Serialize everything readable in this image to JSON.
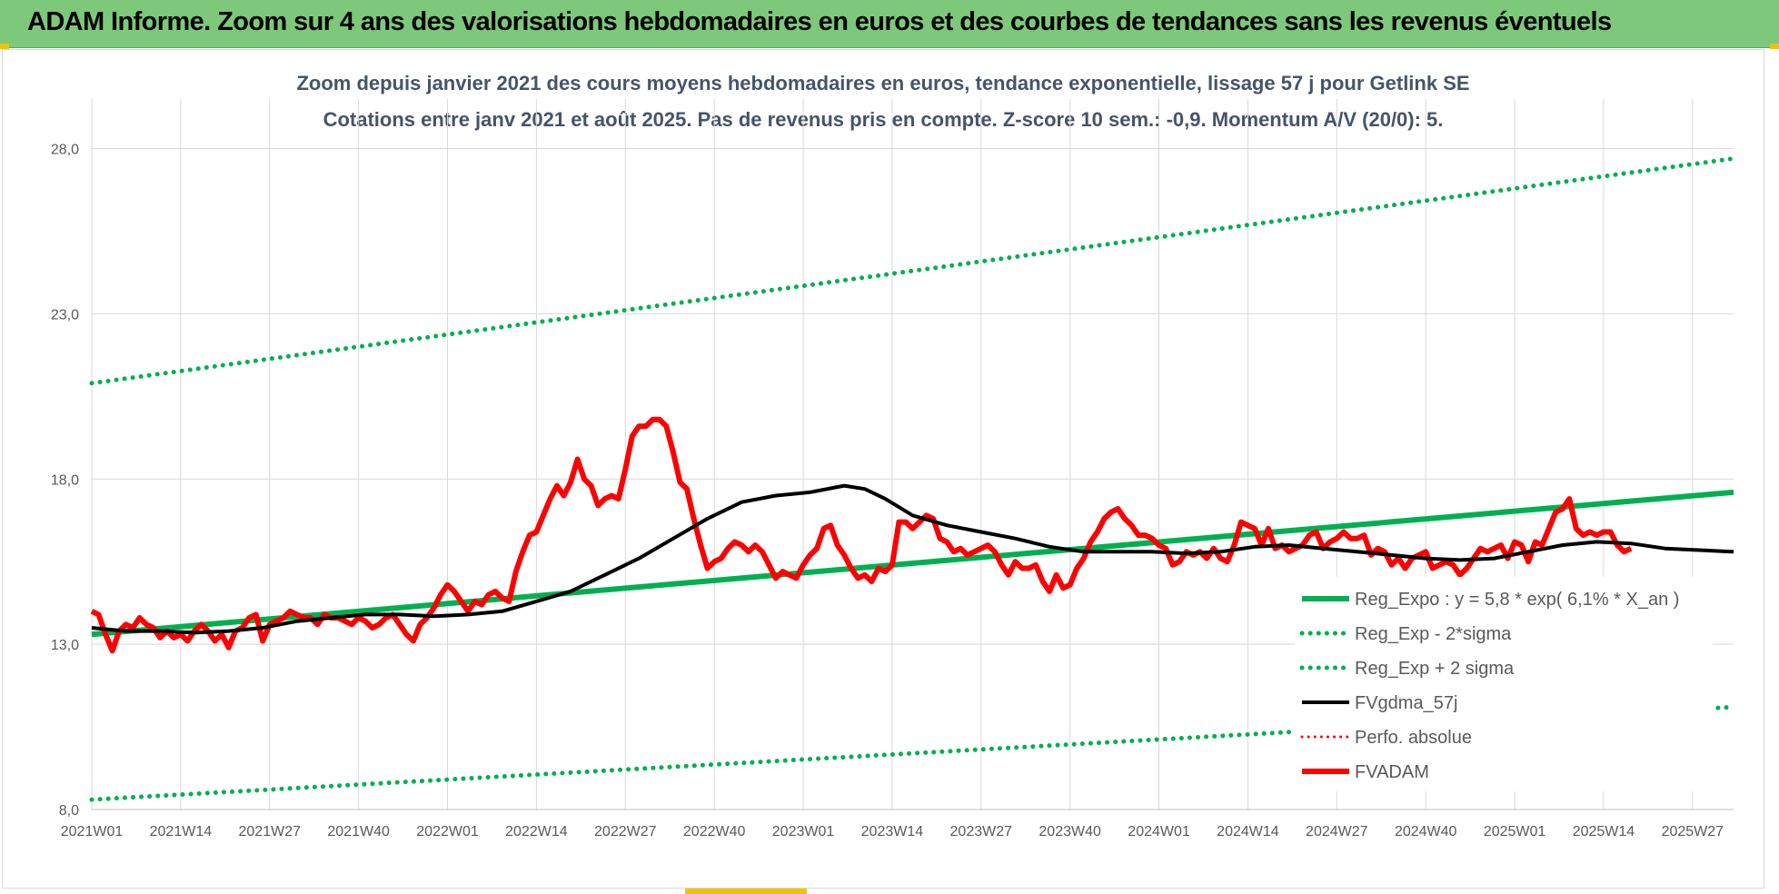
{
  "banner": {
    "title": "ADAM Informe. Zoom sur 4 ans des valorisations hebdomadaires en euros et des courbes de tendances sans les revenus éventuels"
  },
  "colors": {
    "banner_bg": "#7dc87a",
    "reg_expo": "#00b050",
    "band": "#00b050",
    "fvgdma": "#000000",
    "perf_absolue": "#ff0000",
    "fvadam": "#ff0000"
  },
  "chart_data": {
    "type": "line",
    "title": "Zoom depuis janvier 2021 des cours moyens hebdomadaires en euros, tendance exponentielle, lissage 57 j pour Getlink SE",
    "subtitle": "Cotations entre janv 2021 et août 2025.  Pas de revenus pris en compte. Z-score 10 sem.: -0,9. Momentum A/V (20/0): 5.",
    "xlabel": "",
    "ylabel": "",
    "ylim": [
      8.0,
      29.5
    ],
    "y_ticks": [
      "8,0",
      "13,0",
      "18,0",
      "23,0",
      "28,0"
    ],
    "x_ticks": [
      "2021W01",
      "2021W14",
      "2021W27",
      "2021W40",
      "2022W01",
      "2022W14",
      "2022W27",
      "2022W40",
      "2023W01",
      "2023W14",
      "2023W27",
      "2023W40",
      "2024W01",
      "2024W14",
      "2024W27",
      "2024W40",
      "2025W01",
      "2025W14",
      "2025W27"
    ],
    "x_week_range": [
      0,
      240
    ],
    "grid": "vertical and horizontal",
    "legend_position": "right",
    "series": [
      {
        "name": "Reg_Expo : y = 5,8 * exp( 6,1% *  X_an )",
        "style": "solid-thick",
        "points": [
          [
            0,
            13.3
          ],
          [
            240,
            17.6
          ]
        ]
      },
      {
        "name": "Reg_Exp - 2*sigma",
        "style": "dotted",
        "points": [
          [
            0,
            8.3
          ],
          [
            240,
            11.1
          ]
        ]
      },
      {
        "name": "Reg_Exp + 2 sigma",
        "style": "dotted",
        "points": [
          [
            0,
            20.9
          ],
          [
            240,
            27.7
          ]
        ]
      },
      {
        "name": "FVgdma_57j",
        "style": "solid",
        "points": [
          [
            0,
            13.5
          ],
          [
            5,
            13.4
          ],
          [
            10,
            13.4
          ],
          [
            15,
            13.35
          ],
          [
            20,
            13.4
          ],
          [
            25,
            13.5
          ],
          [
            30,
            13.7
          ],
          [
            35,
            13.8
          ],
          [
            40,
            13.9
          ],
          [
            45,
            13.9
          ],
          [
            50,
            13.85
          ],
          [
            55,
            13.9
          ],
          [
            60,
            14.0
          ],
          [
            65,
            14.3
          ],
          [
            70,
            14.6
          ],
          [
            75,
            15.1
          ],
          [
            80,
            15.6
          ],
          [
            85,
            16.2
          ],
          [
            90,
            16.8
          ],
          [
            95,
            17.3
          ],
          [
            100,
            17.5
          ],
          [
            105,
            17.6
          ],
          [
            110,
            17.8
          ],
          [
            113,
            17.7
          ],
          [
            116,
            17.4
          ],
          [
            120,
            16.9
          ],
          [
            125,
            16.6
          ],
          [
            130,
            16.4
          ],
          [
            135,
            16.2
          ],
          [
            140,
            15.95
          ],
          [
            145,
            15.8
          ],
          [
            150,
            15.8
          ],
          [
            155,
            15.8
          ],
          [
            160,
            15.75
          ],
          [
            165,
            15.8
          ],
          [
            170,
            15.95
          ],
          [
            175,
            16.0
          ],
          [
            180,
            15.9
          ],
          [
            185,
            15.8
          ],
          [
            190,
            15.7
          ],
          [
            195,
            15.6
          ],
          [
            200,
            15.55
          ],
          [
            205,
            15.6
          ],
          [
            210,
            15.8
          ],
          [
            215,
            16.0
          ],
          [
            220,
            16.1
          ],
          [
            225,
            16.05
          ],
          [
            230,
            15.9
          ],
          [
            235,
            15.85
          ],
          [
            240,
            15.8
          ]
        ]
      },
      {
        "name": "Perfo. absolue",
        "style": "dotted-thin",
        "points": []
      },
      {
        "name": "FVADAM",
        "style": "solid-thick",
        "points": [
          [
            0,
            14.0
          ],
          [
            1,
            13.9
          ],
          [
            2,
            13.3
          ],
          [
            3,
            12.8
          ],
          [
            4,
            13.4
          ],
          [
            5,
            13.6
          ],
          [
            6,
            13.5
          ],
          [
            7,
            13.8
          ],
          [
            8,
            13.6
          ],
          [
            9,
            13.5
          ],
          [
            10,
            13.2
          ],
          [
            11,
            13.4
          ],
          [
            12,
            13.2
          ],
          [
            13,
            13.3
          ],
          [
            14,
            13.1
          ],
          [
            15,
            13.4
          ],
          [
            16,
            13.6
          ],
          [
            17,
            13.4
          ],
          [
            18,
            13.1
          ],
          [
            19,
            13.3
          ],
          [
            20,
            12.9
          ],
          [
            21,
            13.4
          ],
          [
            22,
            13.5
          ],
          [
            23,
            13.8
          ],
          [
            24,
            13.9
          ],
          [
            25,
            13.1
          ],
          [
            26,
            13.6
          ],
          [
            27,
            13.7
          ],
          [
            28,
            13.8
          ],
          [
            29,
            14.0
          ],
          [
            30,
            13.9
          ],
          [
            31,
            13.8
          ],
          [
            32,
            13.8
          ],
          [
            33,
            13.6
          ],
          [
            34,
            13.9
          ],
          [
            35,
            13.8
          ],
          [
            36,
            13.8
          ],
          [
            37,
            13.7
          ],
          [
            38,
            13.6
          ],
          [
            39,
            13.8
          ],
          [
            40,
            13.7
          ],
          [
            41,
            13.5
          ],
          [
            42,
            13.6
          ],
          [
            43,
            13.8
          ],
          [
            44,
            13.9
          ],
          [
            45,
            13.6
          ],
          [
            46,
            13.3
          ],
          [
            47,
            13.1
          ],
          [
            48,
            13.6
          ],
          [
            49,
            13.8
          ],
          [
            50,
            14.1
          ],
          [
            51,
            14.5
          ],
          [
            52,
            14.8
          ],
          [
            53,
            14.6
          ],
          [
            54,
            14.3
          ],
          [
            55,
            14.0
          ],
          [
            56,
            14.3
          ],
          [
            57,
            14.2
          ],
          [
            58,
            14.5
          ],
          [
            59,
            14.6
          ],
          [
            60,
            14.4
          ],
          [
            61,
            14.3
          ],
          [
            62,
            15.2
          ],
          [
            63,
            15.8
          ],
          [
            64,
            16.3
          ],
          [
            65,
            16.4
          ],
          [
            66,
            16.9
          ],
          [
            67,
            17.4
          ],
          [
            68,
            17.8
          ],
          [
            69,
            17.5
          ],
          [
            70,
            17.9
          ],
          [
            71,
            18.6
          ],
          [
            72,
            18.0
          ],
          [
            73,
            17.8
          ],
          [
            74,
            17.2
          ],
          [
            75,
            17.4
          ],
          [
            76,
            17.5
          ],
          [
            77,
            17.4
          ],
          [
            78,
            18.3
          ],
          [
            79,
            19.3
          ],
          [
            80,
            19.6
          ],
          [
            81,
            19.6
          ],
          [
            82,
            19.8
          ],
          [
            83,
            19.8
          ],
          [
            84,
            19.6
          ],
          [
            85,
            18.8
          ],
          [
            86,
            17.9
          ],
          [
            87,
            17.7
          ],
          [
            88,
            16.8
          ],
          [
            89,
            16.0
          ],
          [
            90,
            15.3
          ],
          [
            91,
            15.5
          ],
          [
            92,
            15.6
          ],
          [
            93,
            15.9
          ],
          [
            94,
            16.1
          ],
          [
            95,
            16.0
          ],
          [
            96,
            15.8
          ],
          [
            97,
            16.0
          ],
          [
            98,
            15.8
          ],
          [
            99,
            15.4
          ],
          [
            100,
            15.0
          ],
          [
            101,
            15.2
          ],
          [
            102,
            15.1
          ],
          [
            103,
            15.0
          ],
          [
            104,
            15.4
          ],
          [
            105,
            15.7
          ],
          [
            106,
            15.9
          ],
          [
            107,
            16.5
          ],
          [
            108,
            16.6
          ],
          [
            109,
            16.0
          ],
          [
            110,
            15.7
          ],
          [
            111,
            15.3
          ],
          [
            112,
            15.0
          ],
          [
            113,
            15.1
          ],
          [
            114,
            14.9
          ],
          [
            115,
            15.3
          ],
          [
            116,
            15.2
          ],
          [
            117,
            15.4
          ],
          [
            118,
            16.7
          ],
          [
            119,
            16.7
          ],
          [
            120,
            16.5
          ],
          [
            121,
            16.7
          ],
          [
            122,
            16.9
          ],
          [
            123,
            16.8
          ],
          [
            124,
            16.2
          ],
          [
            125,
            16.1
          ],
          [
            126,
            15.8
          ],
          [
            127,
            15.9
          ],
          [
            128,
            15.7
          ],
          [
            129,
            15.8
          ],
          [
            130,
            15.9
          ],
          [
            131,
            16.0
          ],
          [
            132,
            15.8
          ],
          [
            133,
            15.4
          ],
          [
            134,
            15.1
          ],
          [
            135,
            15.5
          ],
          [
            136,
            15.3
          ],
          [
            137,
            15.3
          ],
          [
            138,
            15.4
          ],
          [
            139,
            14.9
          ],
          [
            140,
            14.6
          ],
          [
            141,
            15.1
          ],
          [
            142,
            14.7
          ],
          [
            143,
            14.8
          ],
          [
            144,
            15.3
          ],
          [
            145,
            15.6
          ],
          [
            146,
            16.1
          ],
          [
            147,
            16.4
          ],
          [
            148,
            16.8
          ],
          [
            149,
            17.0
          ],
          [
            150,
            17.1
          ],
          [
            151,
            16.8
          ],
          [
            152,
            16.6
          ],
          [
            153,
            16.3
          ],
          [
            154,
            16.3
          ],
          [
            155,
            16.2
          ],
          [
            156,
            16.0
          ],
          [
            157,
            15.9
          ],
          [
            158,
            15.4
          ],
          [
            159,
            15.5
          ],
          [
            160,
            15.8
          ],
          [
            161,
            15.7
          ],
          [
            162,
            15.8
          ],
          [
            163,
            15.6
          ],
          [
            164,
            15.9
          ],
          [
            165,
            15.6
          ],
          [
            166,
            15.5
          ],
          [
            167,
            16.0
          ],
          [
            168,
            16.7
          ],
          [
            169,
            16.6
          ],
          [
            170,
            16.5
          ],
          [
            171,
            16.0
          ],
          [
            172,
            16.5
          ],
          [
            173,
            15.9
          ],
          [
            174,
            16.0
          ],
          [
            175,
            15.8
          ],
          [
            176,
            15.9
          ],
          [
            177,
            16.0
          ],
          [
            178,
            16.3
          ],
          [
            179,
            16.4
          ],
          [
            180,
            15.9
          ],
          [
            181,
            16.1
          ],
          [
            182,
            16.2
          ],
          [
            183,
            16.4
          ],
          [
            184,
            16.2
          ],
          [
            185,
            16.2
          ],
          [
            186,
            16.3
          ],
          [
            187,
            15.7
          ],
          [
            188,
            15.9
          ],
          [
            189,
            15.8
          ],
          [
            190,
            15.4
          ],
          [
            191,
            15.6
          ],
          [
            192,
            15.3
          ],
          [
            193,
            15.6
          ],
          [
            194,
            15.7
          ],
          [
            195,
            15.8
          ],
          [
            196,
            15.3
          ],
          [
            197,
            15.4
          ],
          [
            198,
            15.5
          ],
          [
            199,
            15.4
          ],
          [
            200,
            15.1
          ],
          [
            201,
            15.3
          ],
          [
            202,
            15.6
          ],
          [
            203,
            15.9
          ],
          [
            204,
            15.8
          ],
          [
            205,
            15.9
          ],
          [
            206,
            16.0
          ],
          [
            207,
            15.6
          ],
          [
            208,
            16.1
          ],
          [
            209,
            16.0
          ],
          [
            210,
            15.5
          ],
          [
            211,
            16.1
          ],
          [
            212,
            16.0
          ],
          [
            213,
            16.5
          ],
          [
            214,
            17.0
          ],
          [
            215,
            17.1
          ],
          [
            216,
            17.4
          ],
          [
            217,
            16.5
          ],
          [
            218,
            16.3
          ],
          [
            219,
            16.4
          ],
          [
            220,
            16.3
          ],
          [
            221,
            16.4
          ],
          [
            222,
            16.4
          ],
          [
            223,
            16.0
          ],
          [
            224,
            15.8
          ],
          [
            225,
            15.9
          ]
        ]
      }
    ]
  }
}
